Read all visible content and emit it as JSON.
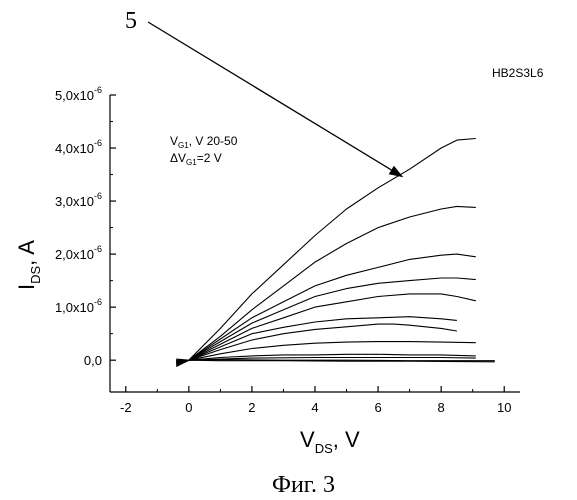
{
  "chart_data": {
    "type": "line",
    "sample_id": "HB2S3L6",
    "figure_caption": "Фиг. 3",
    "callout_label": "5",
    "annotation": {
      "line1": {
        "main": "V",
        "sub": "G1",
        "rest": ", V 20-50"
      },
      "line2": {
        "main": "ΔV",
        "sub": "G1",
        "rest": "=2 V"
      }
    },
    "xlabel": {
      "main": "V",
      "sub": "DS",
      "rest": ", V"
    },
    "ylabel": {
      "main": "I",
      "sub": "DS",
      "rest": ", A"
    },
    "xlim": [
      -2.5,
      10.5
    ],
    "ylim": [
      -0.6,
      5.0
    ],
    "xticks": [
      -2,
      0,
      2,
      4,
      6,
      8,
      10
    ],
    "xtick_labels": [
      "-2",
      "0",
      "2",
      "4",
      "6",
      "8",
      "10"
    ],
    "yticks": [
      0,
      1,
      2,
      3,
      4,
      5
    ],
    "ytick_labels": [
      {
        "mant": "0,0",
        "exp": ""
      },
      {
        "mant": "1,0x10",
        "exp": "-6"
      },
      {
        "mant": "2,0x10",
        "exp": "-6"
      },
      {
        "mant": "3,0x10",
        "exp": "-6"
      },
      {
        "mant": "4,0x10",
        "exp": "-6"
      },
      {
        "mant": "5,0x10",
        "exp": "-6"
      }
    ],
    "y_unit_scale": "1e-6 A",
    "arrow_target": {
      "x": 6.8,
      "y": 3.45
    },
    "grid": false,
    "series": [
      {
        "x": [
          -0.4,
          0,
          1,
          2,
          3,
          4,
          5,
          6,
          7,
          8,
          8.5,
          9.1
        ],
        "y": [
          -0.12,
          0,
          0.6,
          1.25,
          1.8,
          2.35,
          2.85,
          3.25,
          3.6,
          4.0,
          4.15,
          4.18
        ]
      },
      {
        "x": [
          -0.4,
          0,
          1,
          2,
          3,
          4,
          5,
          6,
          7,
          8,
          8.5,
          9.1
        ],
        "y": [
          -0.1,
          0,
          0.45,
          0.95,
          1.4,
          1.85,
          2.2,
          2.5,
          2.7,
          2.85,
          2.9,
          2.88
        ]
      },
      {
        "x": [
          -0.4,
          0,
          1,
          2,
          3,
          4,
          5,
          6,
          7,
          8,
          8.5,
          9.1
        ],
        "y": [
          -0.08,
          0,
          0.4,
          0.8,
          1.1,
          1.4,
          1.6,
          1.75,
          1.9,
          1.98,
          2.0,
          1.95
        ]
      },
      {
        "x": [
          -0.4,
          0,
          1,
          2,
          3,
          4,
          5,
          6,
          7,
          8,
          8.5,
          9.1
        ],
        "y": [
          -0.07,
          0,
          0.35,
          0.7,
          0.95,
          1.2,
          1.35,
          1.45,
          1.5,
          1.55,
          1.55,
          1.52
        ]
      },
      {
        "x": [
          -0.4,
          0,
          1,
          2,
          3,
          4,
          5,
          6,
          7,
          8,
          8.5,
          9.1
        ],
        "y": [
          -0.06,
          0,
          0.3,
          0.6,
          0.8,
          1.0,
          1.1,
          1.2,
          1.25,
          1.25,
          1.2,
          1.12
        ]
      },
      {
        "x": [
          -0.4,
          0,
          1,
          2,
          3,
          4,
          5,
          6,
          7,
          8,
          8.5
        ],
        "y": [
          -0.05,
          0,
          0.25,
          0.5,
          0.62,
          0.72,
          0.78,
          0.8,
          0.82,
          0.78,
          0.75
        ]
      },
      {
        "x": [
          -0.4,
          0,
          1,
          2,
          3,
          4,
          5,
          6,
          6.5,
          7,
          8,
          8.5
        ],
        "y": [
          -0.04,
          0,
          0.2,
          0.38,
          0.5,
          0.58,
          0.63,
          0.68,
          0.68,
          0.66,
          0.6,
          0.55
        ]
      },
      {
        "x": [
          -0.4,
          0,
          1,
          2,
          3,
          4,
          5,
          6,
          7,
          8,
          9.1
        ],
        "y": [
          -0.03,
          0,
          0.12,
          0.22,
          0.28,
          0.32,
          0.34,
          0.35,
          0.35,
          0.34,
          0.33
        ]
      },
      {
        "x": [
          -0.4,
          0,
          1,
          2,
          3,
          4,
          5,
          6,
          7,
          8,
          9.1
        ],
        "y": [
          -0.02,
          0,
          0.05,
          0.08,
          0.1,
          0.1,
          0.11,
          0.11,
          0.1,
          0.1,
          0.08
        ]
      },
      {
        "x": [
          -0.4,
          0,
          1,
          2,
          4,
          6,
          8,
          9.1
        ],
        "y": [
          -0.01,
          0,
          0.02,
          0.04,
          0.05,
          0.05,
          0.05,
          0.04
        ]
      },
      {
        "x": [
          -0.4,
          0,
          1,
          3,
          5,
          7,
          9.7
        ],
        "y": [
          0.0,
          0,
          -0.01,
          -0.01,
          -0.02,
          -0.02,
          -0.03
        ]
      },
      {
        "x": [
          -0.4,
          0,
          1,
          3,
          5,
          7,
          9.7
        ],
        "y": [
          0.02,
          0,
          0.01,
          0.0,
          0.0,
          -0.01,
          -0.01
        ]
      }
    ]
  }
}
